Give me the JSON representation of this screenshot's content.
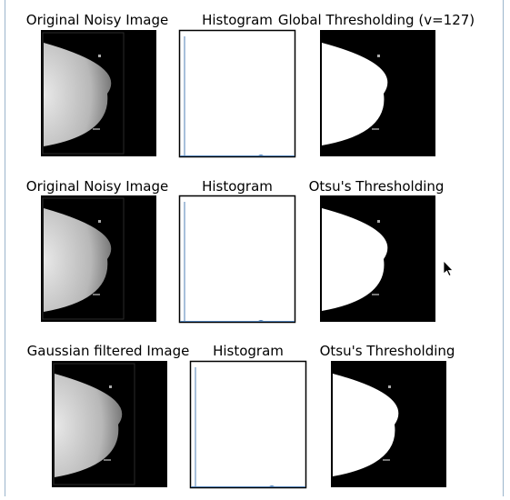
{
  "rows": [
    [
      "Original Noisy Image",
      "Histogram",
      "Global Thresholding (v=127)"
    ],
    [
      "Original Noisy Image",
      "Histogram",
      "Otsu's Thresholding"
    ],
    [
      "Gaussian filtered Image",
      "Histogram",
      "Otsu's Thresholding"
    ]
  ]
}
